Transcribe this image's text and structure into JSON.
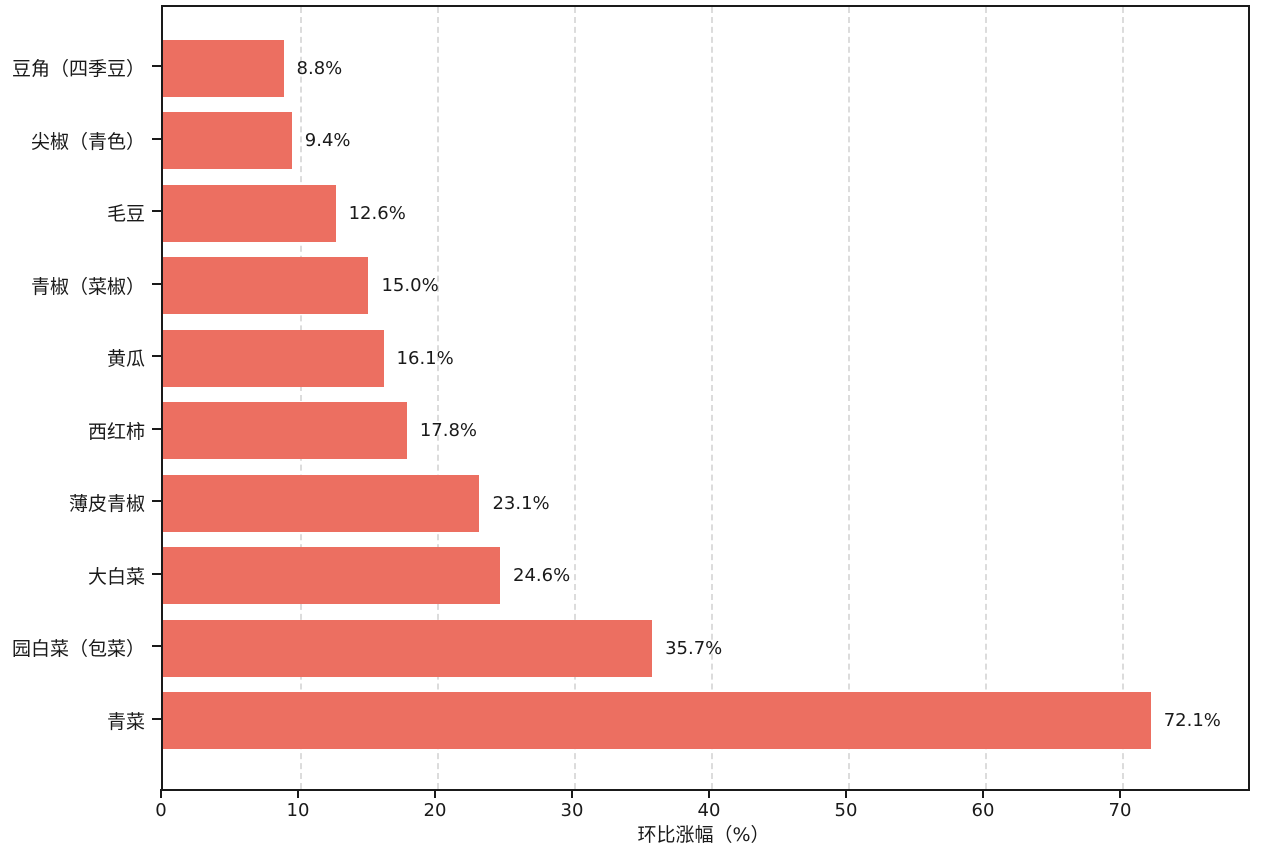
{
  "chart_data": {
    "type": "bar",
    "orientation": "horizontal",
    "title": "",
    "xlabel": "环比涨幅（%）",
    "ylabel": "",
    "categories": [
      "豆角（四季豆）",
      "尖椒（青色）",
      "毛豆",
      "青椒（菜椒）",
      "黄瓜",
      "西红柿",
      "薄皮青椒",
      "大白菜",
      "园白菜（包菜）",
      "青菜"
    ],
    "values": [
      8.8,
      9.4,
      12.6,
      15.0,
      16.1,
      17.8,
      23.1,
      24.6,
      35.7,
      72.1
    ],
    "value_labels": [
      "8.8%",
      "9.4%",
      "12.6%",
      "15.0%",
      "16.1%",
      "17.8%",
      "23.1%",
      "24.6%",
      "35.7%",
      "72.1%"
    ],
    "x_ticks": [
      0,
      10,
      20,
      30,
      40,
      50,
      60,
      70
    ],
    "x_tick_labels": [
      "0",
      "10",
      "20",
      "30",
      "40",
      "50",
      "60",
      "70"
    ],
    "xlim": [
      0,
      79.2
    ],
    "grid": "vertical-dashed",
    "legend": "none",
    "colors": {
      "bar": "#EC6F61",
      "grid": "#dcdcdc",
      "axis": "#1a1a1a",
      "text": "#1a1a1a",
      "background": "#ffffff"
    }
  }
}
